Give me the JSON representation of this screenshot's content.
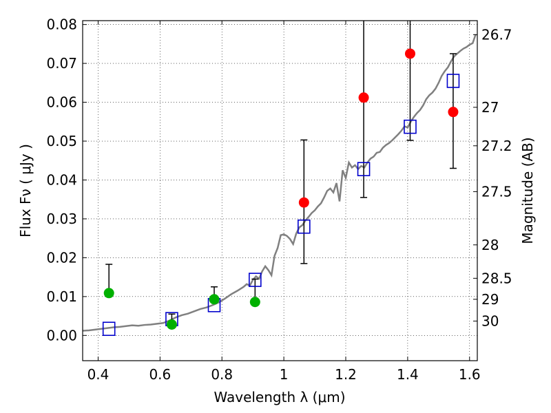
{
  "chart_data": {
    "type": "scatter",
    "xlabel": "Wavelength  λ (μm)",
    "ylabel": "Flux  Fν  ( μJy )",
    "y2label": "Magnitude (AB)",
    "xlim": [
      0.35,
      1.625
    ],
    "ylim": [
      -0.0065,
      0.081
    ],
    "grid": true,
    "x_ticks": [
      0.4,
      0.6,
      0.8,
      1.0,
      1.2,
      1.4,
      1.6
    ],
    "x_tick_labels": [
      "0.4",
      "0.6",
      "0.8",
      "1",
      "1.2",
      "1.4",
      "1.6"
    ],
    "y_ticks": [
      0.0,
      0.01,
      0.02,
      0.03,
      0.04,
      0.05,
      0.06,
      0.07,
      0.08
    ],
    "y_tick_labels": [
      "0.00",
      "0.01",
      "0.02",
      "0.03",
      "0.04",
      "0.05",
      "0.06",
      "0.07",
      "0.08"
    ],
    "mag_ticks": [
      {
        "label": "26.7",
        "flux": 0.0774
      },
      {
        "label": "27",
        "flux": 0.0587
      },
      {
        "label": "27.2",
        "flux": 0.0488
      },
      {
        "label": "27.5",
        "flux": 0.037
      },
      {
        "label": "28",
        "flux": 0.0233
      },
      {
        "label": "28.5",
        "flux": 0.0147
      },
      {
        "label": "29",
        "flux": 0.0093
      },
      {
        "label": "30",
        "flux": 0.0037
      }
    ],
    "series": [
      {
        "name": "model spectrum",
        "kind": "line",
        "color": "#808080",
        "x": [
          0.35,
          0.37,
          0.39,
          0.41,
          0.43,
          0.45,
          0.47,
          0.49,
          0.51,
          0.53,
          0.55,
          0.57,
          0.59,
          0.61,
          0.63,
          0.65,
          0.67,
          0.69,
          0.71,
          0.73,
          0.75,
          0.77,
          0.79,
          0.81,
          0.83,
          0.85,
          0.87,
          0.88,
          0.89,
          0.9,
          0.91,
          0.92,
          0.93,
          0.94,
          0.95,
          0.96,
          0.97,
          0.98,
          0.99,
          1.0,
          1.01,
          1.02,
          1.03,
          1.04,
          1.05,
          1.06,
          1.07,
          1.08,
          1.09,
          1.1,
          1.11,
          1.12,
          1.13,
          1.14,
          1.15,
          1.16,
          1.17,
          1.18,
          1.19,
          1.2,
          1.21,
          1.22,
          1.23,
          1.24,
          1.25,
          1.26,
          1.27,
          1.28,
          1.29,
          1.3,
          1.31,
          1.32,
          1.33,
          1.34,
          1.35,
          1.36,
          1.37,
          1.38,
          1.39,
          1.4,
          1.41,
          1.42,
          1.43,
          1.44,
          1.45,
          1.46,
          1.47,
          1.48,
          1.49,
          1.5,
          1.51,
          1.52,
          1.53,
          1.54,
          1.55,
          1.56,
          1.57,
          1.58,
          1.59,
          1.6,
          1.61,
          1.62
        ],
        "y": [
          0.0012,
          0.0013,
          0.0015,
          0.0017,
          0.0019,
          0.0021,
          0.0022,
          0.0024,
          0.0026,
          0.0025,
          0.0027,
          0.0028,
          0.003,
          0.0032,
          0.0038,
          0.0046,
          0.0052,
          0.0056,
          0.0062,
          0.0068,
          0.0072,
          0.0078,
          0.0085,
          0.0095,
          0.0106,
          0.0115,
          0.0125,
          0.0132,
          0.0128,
          0.0143,
          0.0152,
          0.0146,
          0.0165,
          0.0178,
          0.0168,
          0.0155,
          0.0205,
          0.0225,
          0.0258,
          0.026,
          0.0256,
          0.0248,
          0.0235,
          0.0262,
          0.0278,
          0.0284,
          0.0296,
          0.0305,
          0.0315,
          0.0322,
          0.0332,
          0.034,
          0.0355,
          0.0372,
          0.0378,
          0.0368,
          0.0392,
          0.0345,
          0.0425,
          0.0405,
          0.0445,
          0.0432,
          0.0438,
          0.0428,
          0.0436,
          0.0432,
          0.0445,
          0.0455,
          0.046,
          0.047,
          0.0472,
          0.0483,
          0.049,
          0.0495,
          0.0502,
          0.051,
          0.0518,
          0.0527,
          0.0538,
          0.0535,
          0.055,
          0.0562,
          0.0572,
          0.058,
          0.0592,
          0.0608,
          0.0618,
          0.0625,
          0.0635,
          0.065,
          0.0668,
          0.068,
          0.069,
          0.0705,
          0.0718,
          0.0725,
          0.0732,
          0.0738,
          0.0742,
          0.0748,
          0.0752,
          0.0775
        ]
      },
      {
        "name": "model photometry",
        "kind": "open-square",
        "color": "#0000cc",
        "x": [
          0.435,
          0.638,
          0.775,
          0.907,
          1.065,
          1.258,
          1.408,
          1.547
        ],
        "y": [
          0.0017,
          0.0042,
          0.0078,
          0.0143,
          0.028,
          0.0428,
          0.0537,
          0.0655
        ]
      },
      {
        "name": "observed (green)",
        "kind": "circle",
        "color": "#00b000",
        "x": [
          0.435,
          0.638,
          0.775,
          0.907
        ],
        "y": [
          0.0109,
          0.0028,
          0.0093,
          0.0086
        ],
        "yerr_low": [
          0.0109,
          0.0028,
          0.0093,
          0.0086
        ],
        "yerr_high": [
          0.0183,
          0.0055,
          0.0125,
          0.0145
        ]
      },
      {
        "name": "observed (red)",
        "kind": "circle",
        "color": "#ff0000",
        "x": [
          1.065,
          1.258,
          1.408,
          1.547
        ],
        "y": [
          0.0342,
          0.0612,
          0.0725,
          0.0575
        ],
        "yerr_low": [
          0.0185,
          0.0355,
          0.0502,
          0.043
        ],
        "yerr_high": [
          0.0503,
          0.09,
          0.09,
          0.0725
        ]
      }
    ]
  }
}
